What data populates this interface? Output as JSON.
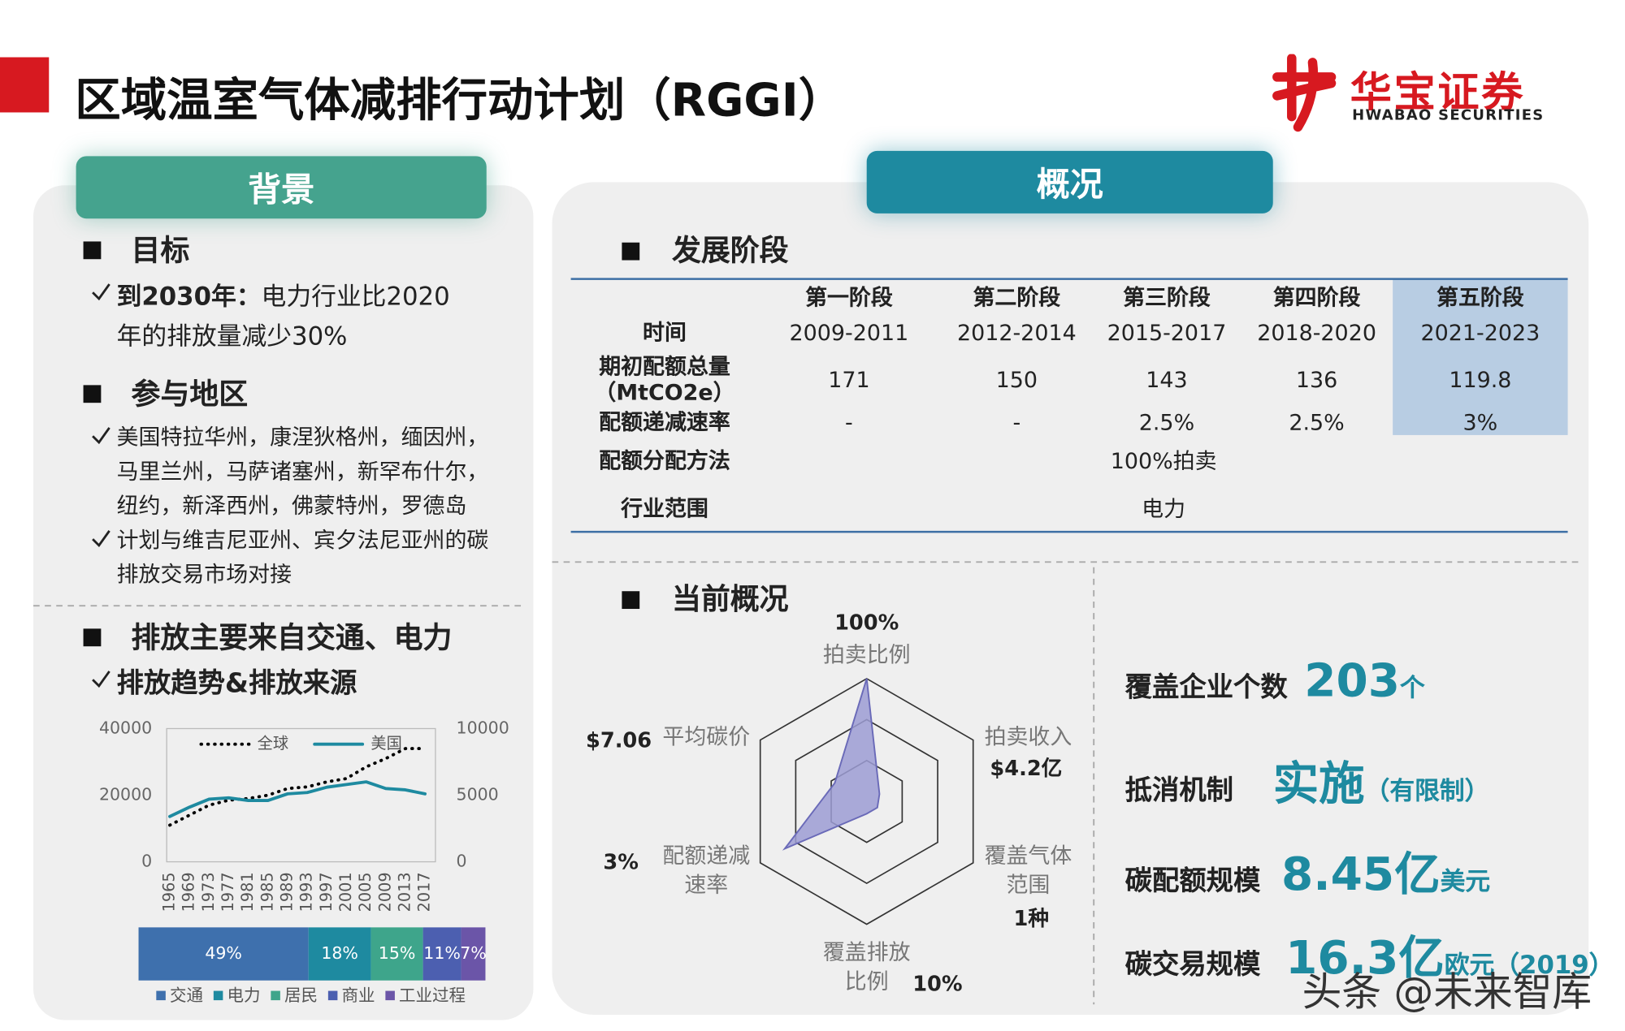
{
  "header": {
    "title": "区域温室气体减排行动计划（RGGI）",
    "logo_cn": "华宝证券",
    "logo_en": "HWABAO SECURITIES"
  },
  "left_panel": {
    "tab": "背景",
    "sections": [
      {
        "heading": "目标",
        "items": [
          {
            "lead": "到2030年：",
            "text": "电力行业比2020年的排放量减少30%"
          }
        ]
      },
      {
        "heading": "参与地区",
        "items": [
          {
            "text": "美国特拉华州，康涅狄格州，缅因州，马里兰州，马萨诸塞州，新罕布什尔，纽约，新泽西州，佛蒙特州，罗德岛"
          },
          {
            "text": "计划与维吉尼亚州、宾夕法尼亚州的碳排放交易市场对接"
          }
        ]
      },
      {
        "heading": "排放主要来自交通、电力",
        "items": [
          {
            "text": "排放趋势&排放来源"
          }
        ]
      }
    ]
  },
  "right_panel": {
    "tab": "概况",
    "stage_heading": "发展阶段",
    "table": {
      "columns": [
        "第一阶段",
        "第二阶段",
        "第三阶段",
        "第四阶段",
        "第五阶段"
      ],
      "highlight_column": 4,
      "rows": [
        {
          "label": "时间",
          "cells": [
            "2009-2011",
            "2012-2014",
            "2015-2017",
            "2018-2020",
            "2021-2023"
          ]
        },
        {
          "label": "期初配额总量\n（MtCO2e）",
          "cells": [
            171,
            150,
            143,
            136,
            119.8
          ]
        },
        {
          "label": "配额递减速率",
          "cells": [
            "-",
            "-",
            "2.5%",
            "2.5%",
            "3%"
          ]
        },
        {
          "label": "配额分配方法",
          "span": "100%拍卖"
        },
        {
          "label": "行业范围",
          "span": "电力"
        }
      ]
    },
    "current_heading": "当前概况",
    "stats": [
      {
        "label": "覆盖企业个数",
        "value": 203,
        "unit": "个"
      },
      {
        "label": "抵消机制",
        "value": "实施",
        "unit": "（有限制）"
      },
      {
        "label": "碳配额规模",
        "value": "8.45亿",
        "unit": "美元"
      },
      {
        "label": "碳交易规模",
        "value": "16.3亿",
        "unit": "欧元（2019）"
      }
    ]
  },
  "watermark": "头条 @未来智库",
  "chart_data": [
    {
      "type": "line",
      "legend": "top",
      "categories": [
        "1965",
        "1969",
        "1973",
        "1977",
        "1981",
        "1985",
        "1989",
        "1993",
        "1997",
        "2001",
        "2005",
        "2009",
        "2013",
        "2017"
      ],
      "series": [
        {
          "name": "全球",
          "color": "#000000",
          "values": [
            11000,
            14000,
            17000,
            18500,
            19000,
            20000,
            22000,
            22500,
            24000,
            25000,
            28500,
            31000,
            34000,
            34000
          ]
        },
        {
          "name": "美国",
          "color": "#1e8aa0",
          "axis": "y2",
          "values": [
            3400,
            4100,
            4700,
            4800,
            4600,
            4600,
            5100,
            5200,
            5600,
            5800,
            6000,
            5500,
            5400,
            5100
          ]
        }
      ],
      "ylim": [
        0,
        40000
      ],
      "yticks": [
        0,
        20000,
        40000
      ],
      "y2lim": [
        0,
        10000
      ],
      "y2ticks": [
        0,
        5000,
        10000
      ]
    },
    {
      "type": "bar",
      "stacked": true,
      "orientation": "horizontal",
      "xlim": [
        0,
        100
      ],
      "series": [
        {
          "name": "交通",
          "color": "#3e70ad",
          "values": [
            49
          ],
          "value_labels": [
            "49%"
          ]
        },
        {
          "name": "电力",
          "color": "#1e8aa0",
          "values": [
            18
          ],
          "value_labels": [
            "18%"
          ]
        },
        {
          "name": "居民",
          "color": "#3ea58b",
          "values": [
            15
          ],
          "value_labels": [
            "15%"
          ]
        },
        {
          "name": "商业",
          "color": "#4c5fb0",
          "values": [
            11
          ],
          "value_labels": [
            "11%"
          ]
        },
        {
          "name": "工业过程",
          "color": "#6b55a8",
          "values": [
            7
          ],
          "value_labels": [
            "7%"
          ]
        }
      ]
    },
    {
      "type": "radar",
      "color": "#9c9cd4",
      "rlim": [
        0,
        100
      ],
      "categories": [
        "拍卖比例",
        "拍卖收入",
        "覆盖气体范围",
        "覆盖排放比例",
        "配额递减速率",
        "平均碳价"
      ],
      "category_labels": [
        "100%",
        "$4.2亿",
        "1种",
        "10%",
        "3%",
        "$7.06"
      ],
      "values": [
        100,
        12,
        10,
        10,
        77,
        30
      ]
    }
  ]
}
